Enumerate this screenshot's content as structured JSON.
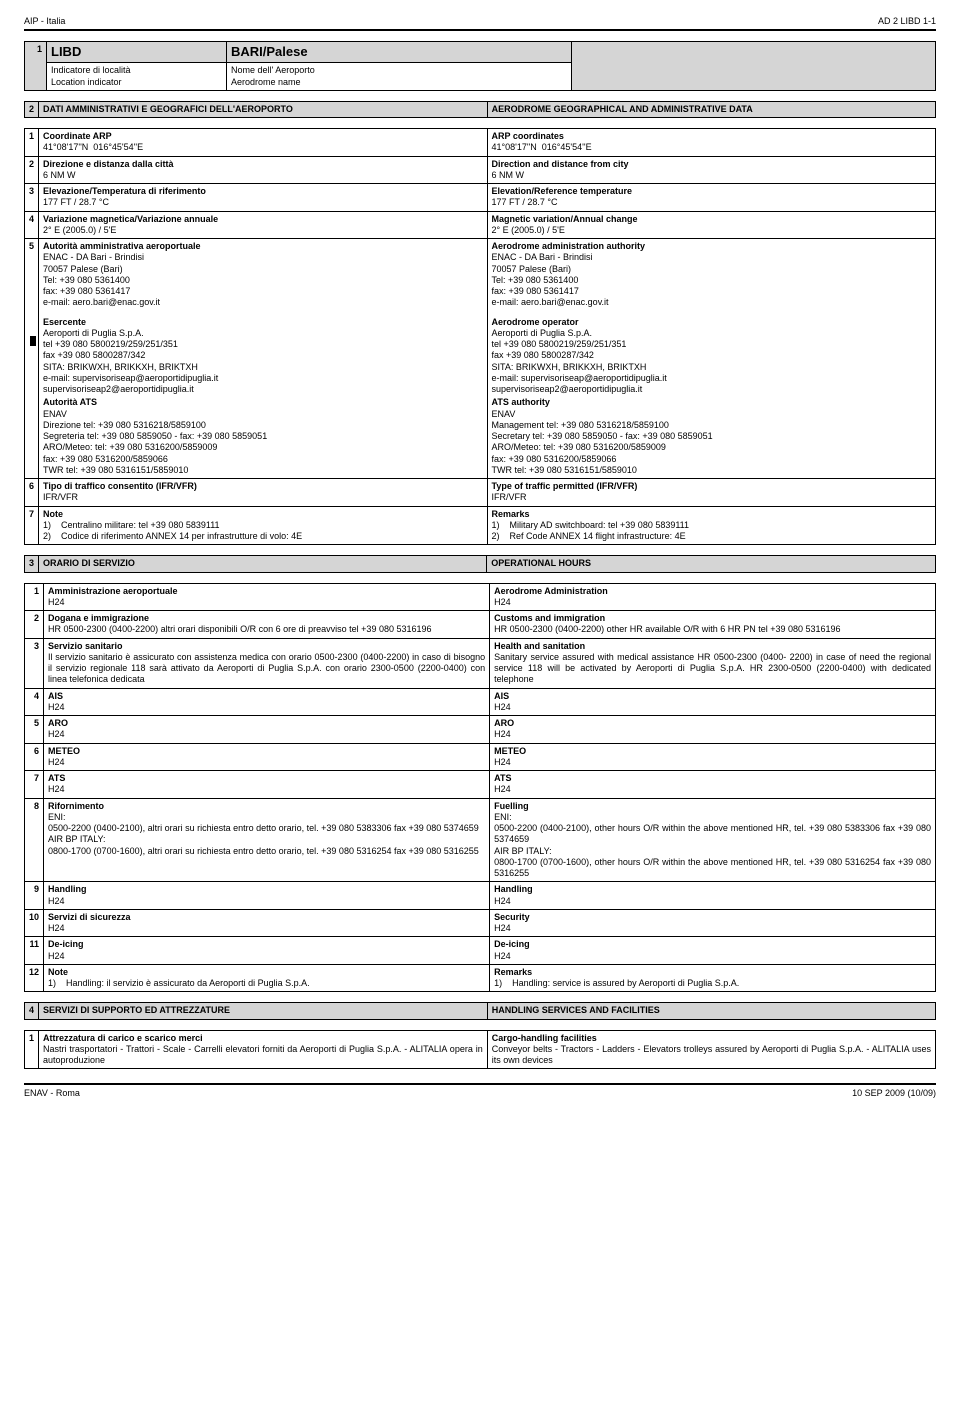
{
  "header": {
    "left": "AIP - Italia",
    "right": "AD 2 LIBD 1-1"
  },
  "footer": {
    "left": "ENAV - Roma",
    "right": "10 SEP 2009  (10/09)"
  },
  "t1": {
    "num": "1",
    "code": "LIBD",
    "name": "BARI/Palese",
    "r1a": "Indicatore di località",
    "r1b": "Nome dell' Aeroporto",
    "r2a": "Location indicator",
    "r2b": "Aerodrome name"
  },
  "sec2": {
    "num": "2",
    "it": "DATI AMMINISTRATIVI E GEOGRAFICI DELL'AEROPORTO",
    "en": "AERODROME GEOGRAPHICAL AND ADMINISTRATIVE DATA"
  },
  "s2rows": [
    {
      "n": "1",
      "l": "Coordinate ARP",
      "ld": "41°08'17''N  016°45'54''E",
      "r": "ARP coordinates",
      "rd": "41°08'17''N  016°45'54''E"
    },
    {
      "n": "2",
      "l": "Direzione e distanza dalla città",
      "ld": "6 NM W",
      "r": "Direction and distance from city",
      "rd": "6 NM W"
    },
    {
      "n": "3",
      "l": "Elevazione/Temperatura di riferimento",
      "ld": "177 FT / 28.7 °C",
      "r": "Elevation/Reference temperature",
      "rd": "177 FT / 28.7 °C"
    },
    {
      "n": "4",
      "l": "Variazione magnetica/Variazione annuale",
      "ld": "2° E (2005.0) / 5'E",
      "r": "Magnetic variation/Annual change",
      "rd": "2° E (2005.0) / 5'E"
    }
  ],
  "s2r5": {
    "n": "5",
    "l": "Autorità amministrativa aeroportuale",
    "r": "Aerodrome administration authority",
    "ld": "ENAC - DA Bari - Brindisi\n70057 Palese (Bari)\nTel: +39 080 5361400\nfax: +39 080 5361417\ne-mail: aero.bari@enac.gov.it",
    "rd": "ENAC - DA Bari - Brindisi\n70057 Palese (Bari)\nTel: +39 080 5361400\nfax: +39 080 5361417\ne-mail: aero.bari@enac.gov.it",
    "l2h": "Esercente",
    "r2h": "Aerodrome operator",
    "l2": "Aeroporti di Puglia S.p.A.\ntel +39 080 5800219/259/251/351\nfax +39 080 5800287/342\nSITA: BRIKWXH, BRIKKXH, BRIKTXH\ne-mail: supervisoriseap@aeroportidipuglia.it\nsupervisoriseap2@aeroportidipuglia.it",
    "r2": "Aeroporti di Puglia S.p.A.\ntel +39 080 5800219/259/251/351\nfax +39 080 5800287/342\nSITA: BRIKWXH, BRIKKXH, BRIKTXH\ne-mail: supervisoriseap@aeroportidipuglia.it\nsupervisoriseap2@aeroportidipuglia.it",
    "l3h": "Autorità ATS",
    "r3h": "ATS authority",
    "l3": "ENAV\nDirezione tel: +39 080 5316218/5859100\nSegreteria tel: +39 080 5859050 - fax: +39 080 5859051\nARO/Meteo: tel: +39 080 5316200/5859009\nfax: +39 080 5316200/5859066\nTWR tel: +39 080 5316151/5859010",
    "r3": "ENAV\nManagement tel: +39 080 5316218/5859100\nSecretary tel: +39 080 5859050 - fax: +39 080 5859051\nARO/Meteo: tel: +39 080 5316200/5859009\nfax: +39 080 5316200/5859066\nTWR tel: +39 080 5316151/5859010"
  },
  "s2r6": {
    "n": "6",
    "l": "Tipo di traffico consentito (IFR/VFR)",
    "ld": "IFR/VFR",
    "r": "Type of traffic permitted (IFR/VFR)",
    "rd": "IFR/VFR"
  },
  "s2r7": {
    "n": "7",
    "l": "Note",
    "r": "Remarks",
    "l1": "1)    Centralino militare: tel +39 080 5839111",
    "l2": "2)    Codice di riferimento ANNEX 14 per infrastrutture di volo: 4E",
    "r1": "1)    Military AD switchboard: tel +39 080 5839111",
    "r2": "2)    Ref Code ANNEX 14 flight infrastructure: 4E"
  },
  "sec3": {
    "num": "3",
    "it": "ORARIO DI SERVIZIO",
    "en": "OPERATIONAL HOURS"
  },
  "s3": [
    {
      "n": "1",
      "l": "Amministrazione aeroportuale",
      "ld": "H24",
      "r": "Aerodrome Administration",
      "rd": "H24"
    },
    {
      "n": "2",
      "l": "Dogana e immigrazione",
      "ld": "HR 0500-2300 (0400-2200) altri orari disponibili O/R con 6 ore di preavviso tel +39 080 5316196",
      "r": "Customs and immigration",
      "rd": "HR 0500-2300 (0400-2200) other HR available O/R with 6 HR PN tel +39 080 5316196"
    },
    {
      "n": "3",
      "l": "Servizio sanitario",
      "ld": "Il servizio sanitario è assicurato con assistenza medica con orario 0500-2300 (0400-2200) in caso di bisogno il servizio regionale 118 sarà attivato da Aeroporti di Puglia S.p.A. con orario 2300-0500 (2200-0400) con linea telefonica dedicata",
      "r": "Health and sanitation",
      "rd": "Sanitary service assured with medical assistance HR 0500-2300 (0400- 2200) in case of need the regional service 118 will be activated by Aeroporti di Puglia S.p.A. HR 2300-0500 (2200-0400) with dedicated telephone"
    },
    {
      "n": "4",
      "l": "AIS",
      "ld": "H24",
      "r": "AIS",
      "rd": "H24"
    },
    {
      "n": "5",
      "l": "ARO",
      "ld": "H24",
      "r": "ARO",
      "rd": "H24"
    },
    {
      "n": "6",
      "l": "METEO",
      "ld": "H24",
      "r": "METEO",
      "rd": "H24"
    },
    {
      "n": "7",
      "l": "ATS",
      "ld": "H24",
      "r": "ATS",
      "rd": "H24"
    },
    {
      "n": "8",
      "l": "Rifornimento",
      "ld": "ENI:\n0500-2200 (0400-2100), altri orari su richiesta entro detto orario, tel. +39 080 5383306 fax +39 080 5374659\nAIR BP ITALY:\n0800-1700 (0700-1600), altri orari su richiesta entro detto orario, tel. +39 080 5316254 fax +39 080 5316255",
      "r": "Fuelling",
      "rd": "ENI:\n0500-2200 (0400-2100), other hours O/R within the above mentioned HR, tel. +39 080 5383306 fax +39 080 5374659\nAIR BP ITALY:\n0800-1700 (0700-1600), other hours O/R within the above mentioned HR, tel. +39 080 5316254 fax +39 080 5316255"
    },
    {
      "n": "9",
      "l": "Handling",
      "ld": "H24",
      "r": "Handling",
      "rd": "H24"
    },
    {
      "n": "10",
      "l": "Servizi di sicurezza",
      "ld": "H24",
      "r": "Security",
      "rd": "H24"
    },
    {
      "n": "11",
      "l": "De-icing",
      "ld": "H24",
      "r": "De-icing",
      "rd": "H24"
    },
    {
      "n": "12",
      "l": "Note",
      "ld": "1)    Handling: il servizio è assicurato da Aeroporti di Puglia S.p.A.",
      "r": "Remarks",
      "rd": "1)    Handling: service is assured by Aeroporti di Puglia S.p.A."
    }
  ],
  "sec4": {
    "num": "4",
    "it": "SERVIZI DI SUPPORTO ED ATTREZZATURE",
    "en": "HANDLING SERVICES AND FACILITIES"
  },
  "s4r1": {
    "n": "1",
    "l": "Attrezzatura di carico e scarico merci",
    "ld": "Nastri trasportatori - Trattori - Scale - Carrelli elevatori forniti da Aeroporti di Puglia S.p.A. - ALITALIA opera in autoproduzione",
    "r": "Cargo-handling facilities",
    "rd": "Conveyor belts - Tractors - Ladders - Elevators trolleys assured by Aeroporti di Puglia S.p.A. - ALITALIA uses its own devices"
  }
}
